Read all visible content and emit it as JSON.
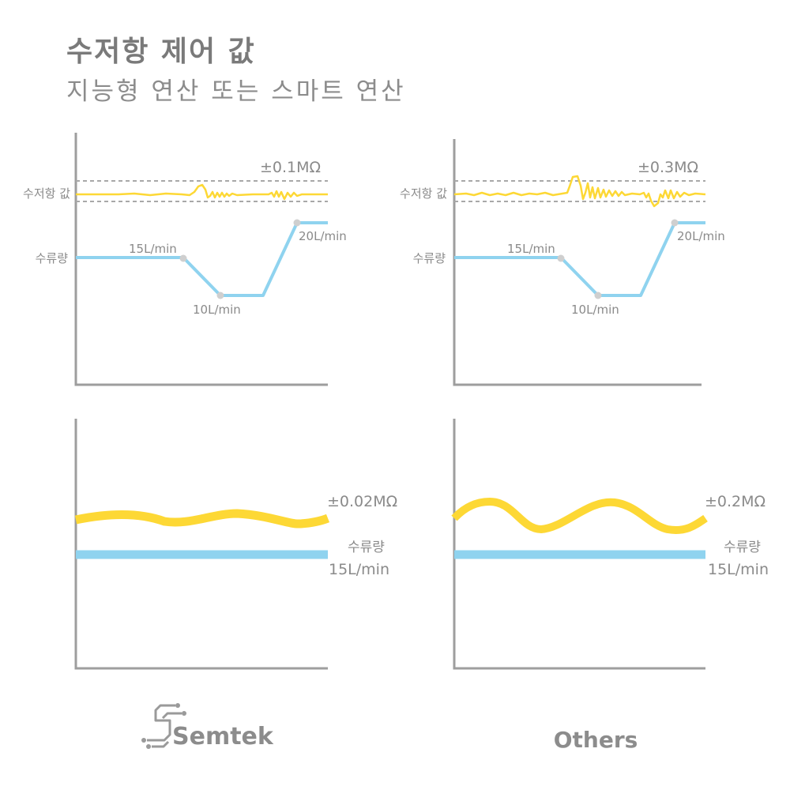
{
  "header": {
    "title": "수저항 제어 값",
    "subtitle": "지능형 연산 또는 스마트 연산"
  },
  "top_left": {
    "tolerance": "±0.1MΩ",
    "resistance_label": "수저항 값",
    "flow_label": "수류량",
    "point_15": "15L/min",
    "point_10": "10L/min",
    "point_20": "20L/min"
  },
  "top_right": {
    "tolerance": "±0.3MΩ",
    "resistance_label": "수저항 값",
    "flow_label": "수류량",
    "point_15": "15L/min",
    "point_10": "10L/min",
    "point_20": "20L/min"
  },
  "bottom_left": {
    "tolerance": "±0.02MΩ",
    "flow_label": "수류량",
    "flow_value": "15L/min"
  },
  "bottom_right": {
    "tolerance": "±0.2MΩ",
    "flow_label": "수류량",
    "flow_value": "15L/min"
  },
  "footer": {
    "left_brand": "Semtek",
    "right_brand": "Others"
  },
  "colors": {
    "resistance": "#fdd835",
    "flow": "#8fd3ef",
    "axis": "#9e9e9e",
    "dashed": "#a8a8a8",
    "marker": "#cfcfcf"
  }
}
